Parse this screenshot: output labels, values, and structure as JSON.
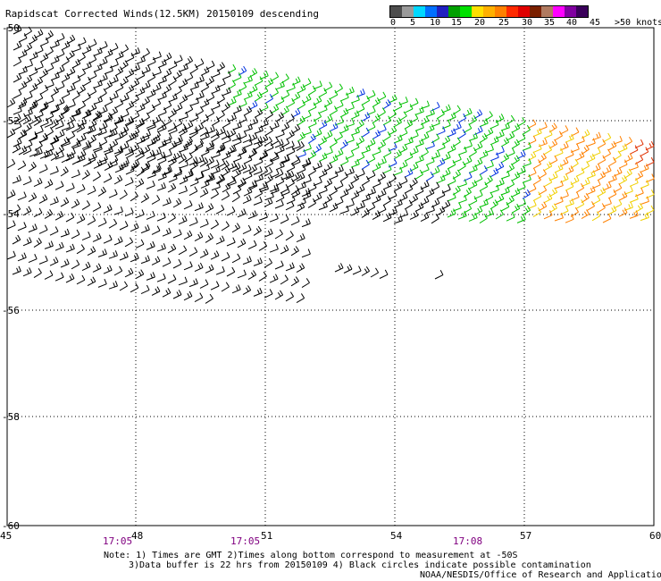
{
  "title": "Rapidscat Corrected Winds(12.5KM) 20150109 descending",
  "colorbar": {
    "colors": [
      "#4d4d4d",
      "#9a9a9a",
      "#00d8ff",
      "#0070ff",
      "#2020c0",
      "#00a000",
      "#00e000",
      "#ffe000",
      "#ffb000",
      "#ff8000",
      "#ff2a00",
      "#e00000",
      "#7a2000",
      "#b07a60",
      "#ff00ff",
      "#8000a0",
      "#3a005a"
    ],
    "labels": [
      "0",
      "5",
      "10",
      "15",
      "20",
      "25",
      "30",
      "35",
      "40",
      "45",
      ">50 knots"
    ]
  },
  "map": {
    "lon_labels": [
      "45",
      "48",
      "51",
      "54",
      "57",
      "60"
    ],
    "lat_labels": [
      "-50",
      "-52",
      "-54",
      "-56",
      "-58",
      "-60"
    ],
    "time_labels": [
      "17:05",
      "17:05",
      "17:08"
    ],
    "time_color": "#800080"
  },
  "notes": {
    "line1": "Note: 1) Times are GMT 2)Times along bottom correspond to measurement at -50S",
    "line2": "3)Data buffer is 22 hrs from 20150109 4) Black circles indicate possible contamination",
    "line3": "NOAA/NESDIS/Office of Research and Applications"
  },
  "wind_colors": {
    "calm": "#000000",
    "moderate": "#00c000",
    "strong_blue": "#0030e0",
    "yellow": "#f0d000",
    "orange": "#ff8000",
    "red": "#e03000"
  }
}
